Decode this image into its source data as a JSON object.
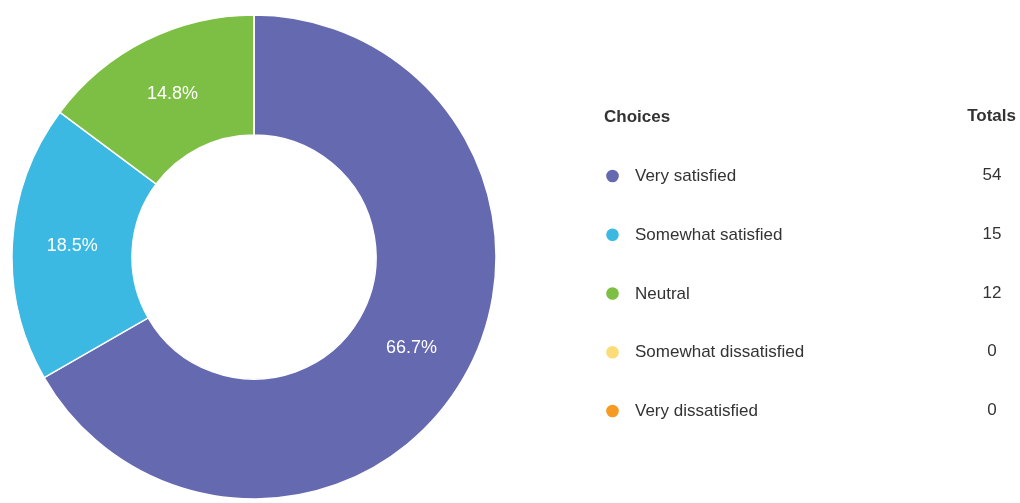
{
  "chart_data": {
    "type": "donut",
    "categories": [
      "Very satisfied",
      "Somewhat satisfied",
      "Neutral",
      "Somewhat dissatisfied",
      "Very dissatisfied"
    ],
    "values": [
      66.7,
      18.5,
      14.8,
      0,
      0
    ],
    "colors": [
      "#6469b0",
      "#3cb9e3",
      "#7dbf44",
      "#fcdc78",
      "#f59a23"
    ],
    "value_labels": [
      "66.7%",
      "18.5%",
      "14.8%",
      null,
      null
    ],
    "legend_title": "Choices",
    "annotations": [
      "Totals",
      "54",
      "15",
      "12",
      "0",
      "0"
    ],
    "legend": "right"
  }
}
